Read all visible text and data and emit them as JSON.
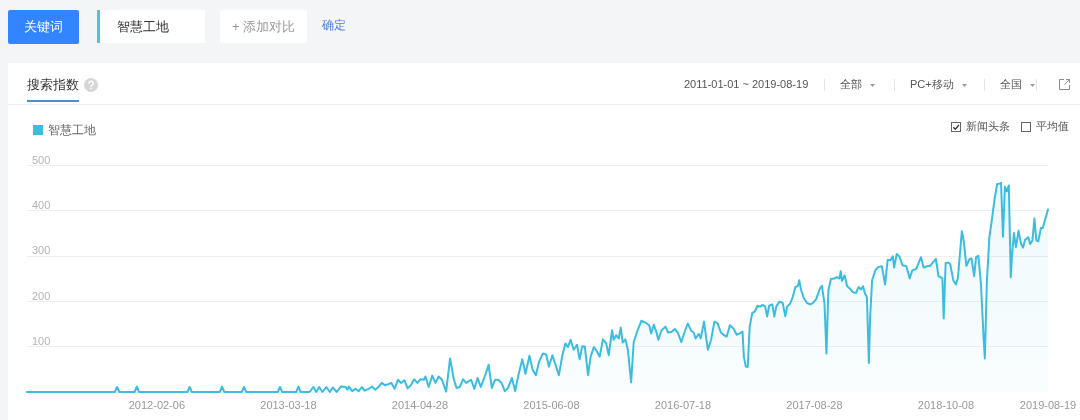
{
  "chart_data": {
    "type": "area",
    "title": "搜索指数",
    "subtitle": "2011-01-01 ~ 2019-08-19",
    "annotations": [
      "关键词",
      "智慧工地",
      "+ 添加对比",
      "确定",
      "全部",
      "PC+移动",
      "全国",
      "新闻头条",
      "平均值"
    ],
    "x": [
      "2011-01-01",
      "2011-09-29",
      "2011-10-06",
      "2011-10-13",
      "2011-11-29",
      "2011-12-06",
      "2011-12-13",
      "2012-05-10",
      "2012-05-17",
      "2012-05-24",
      "2012-08-18",
      "2012-08-25",
      "2012-09-01",
      "2012-10-25",
      "2012-11-01",
      "2012-11-08",
      "2013-02-13",
      "2013-02-20",
      "2013-02-27",
      "2013-04-11",
      "2013-04-18",
      "2013-04-25",
      "2013-05-22",
      "2013-06-03",
      "2013-06-12",
      "2013-06-21",
      "2013-07-01",
      "2013-07-13",
      "2013-07-24",
      "2013-08-02",
      "2013-08-14",
      "2013-08-27",
      "2013-09-11",
      "2013-09-16",
      "2013-09-21",
      "2013-10-01",
      "2013-10-11",
      "2013-10-21",
      "2013-10-31",
      "2013-11-08",
      "2013-11-21",
      "2013-12-01",
      "2013-12-11",
      "2013-12-21",
      "2013-12-31",
      "2014-01-10",
      "2014-01-20",
      "2014-01-30",
      "2014-02-09",
      "2014-02-19",
      "2014-03-01",
      "2014-03-11",
      "2014-03-21",
      "2014-03-31",
      "2014-04-10",
      "2014-04-20",
      "2014-04-30",
      "2014-05-10",
      "2014-05-15",
      "2014-05-25",
      "2014-06-05",
      "2014-06-15",
      "2014-06-25",
      "2014-07-05",
      "2014-07-18",
      "2014-07-30",
      "2014-08-11",
      "2014-08-19",
      "2014-08-29",
      "2014-09-08",
      "2014-09-18",
      "2014-10-03",
      "2014-10-13",
      "2014-10-23",
      "2014-11-02",
      "2014-11-17",
      "2014-11-26",
      "2014-12-06",
      "2014-12-16",
      "2014-12-26",
      "2015-01-05",
      "2015-01-15",
      "2015-01-25",
      "2015-02-06",
      "2015-02-16",
      "2015-02-26",
      "2015-03-10",
      "2015-03-20",
      "2015-04-01",
      "2015-04-11",
      "2015-04-21",
      "2015-05-01",
      "2015-05-13",
      "2015-05-23",
      "2015-05-31",
      "2015-06-11",
      "2015-06-21",
      "2015-07-01",
      "2015-07-11",
      "2015-07-21",
      "2015-07-29",
      "2015-08-06",
      "2015-08-16",
      "2015-08-26",
      "2015-09-03",
      "2015-09-11",
      "2015-09-19",
      "2015-09-29",
      "2015-10-07",
      "2015-10-17",
      "2015-10-25",
      "2015-11-04",
      "2015-11-14",
      "2015-11-24",
      "2015-12-02",
      "2015-12-12",
      "2015-12-17",
      "2015-12-25",
      "2016-01-02",
      "2016-01-08",
      "2016-01-14",
      "2016-01-22",
      "2016-01-30",
      "2016-02-09",
      "2016-02-17",
      "2016-02-29",
      "2016-03-12",
      "2016-03-24",
      "2016-04-05",
      "2016-04-11",
      "2016-04-19",
      "2016-04-27",
      "2016-05-03",
      "2016-05-13",
      "2016-05-25",
      "2016-06-02",
      "2016-06-12",
      "2016-06-23",
      "2016-07-03",
      "2016-07-13",
      "2016-07-25",
      "2016-08-02",
      "2016-08-12",
      "2016-08-20",
      "2016-08-26",
      "2016-09-05",
      "2016-09-11",
      "2016-09-21",
      "2016-10-03",
      "2016-10-13",
      "2016-10-23",
      "2016-11-02",
      "2016-11-12",
      "2016-11-22",
      "2016-11-30",
      "2016-12-10",
      "2016-12-21",
      "2016-12-31",
      "2017-01-10",
      "2017-01-18",
      "2017-01-22",
      "2017-01-28",
      "2017-02-03",
      "2017-02-09",
      "2017-02-17",
      "2017-02-25",
      "2017-03-05",
      "2017-03-13",
      "2017-03-21",
      "2017-03-29",
      "2017-04-04",
      "2017-04-10",
      "2017-04-20",
      "2017-04-26",
      "2017-05-02",
      "2017-05-12",
      "2017-05-22",
      "2017-05-30",
      "2017-06-05",
      "2017-06-14",
      "2017-06-22",
      "2017-06-30",
      "2017-07-08",
      "2017-07-12",
      "2017-07-18",
      "2017-07-26",
      "2017-08-05",
      "2017-08-15",
      "2017-08-23",
      "2017-09-02",
      "2017-09-14",
      "2017-09-20",
      "2017-09-28",
      "2017-10-04",
      "2017-10-10",
      "2017-10-18",
      "2017-10-28",
      "2017-11-05",
      "2017-11-13",
      "2017-11-17",
      "2017-11-21",
      "2017-11-29",
      "2017-12-07",
      "2017-12-15",
      "2017-12-24",
      "2018-01-03",
      "2018-01-11",
      "2018-01-19",
      "2018-01-25",
      "2018-01-31",
      "2018-02-06",
      "2018-02-12",
      "2018-02-16",
      "2018-02-22",
      "2018-03-04",
      "2018-03-12",
      "2018-03-24",
      "2018-04-03",
      "2018-04-11",
      "2018-04-19",
      "2018-04-27",
      "2018-05-01",
      "2018-05-09",
      "2018-05-17",
      "2018-05-27",
      "2018-06-08",
      "2018-06-18",
      "2018-06-26",
      "2018-07-08",
      "2018-07-23",
      "2018-07-31",
      "2018-08-10",
      "2018-08-20",
      "2018-08-28",
      "2018-09-07",
      "2018-09-15",
      "2018-09-21",
      "2018-09-27",
      "2018-10-01",
      "2018-10-07",
      "2018-10-15",
      "2018-10-21",
      "2018-10-31",
      "2018-11-08",
      "2018-11-14",
      "2018-11-26",
      "2018-12-02",
      "2018-12-10",
      "2018-12-20",
      "2018-12-26",
      "2019-01-03",
      "2019-01-09",
      "2019-01-16",
      "2019-01-24",
      "2019-02-01",
      "2019-02-05",
      "2019-02-11",
      "2019-02-19",
      "2019-02-25",
      "2019-03-07",
      "2019-03-15",
      "2019-03-23",
      "2019-03-27",
      "2019-04-02",
      "2019-04-08",
      "2019-04-14",
      "2019-04-20",
      "2019-04-26",
      "2019-04-30",
      "2019-05-06",
      "2019-05-12",
      "2019-05-20",
      "2019-05-28",
      "2019-06-03",
      "2019-06-09",
      "2019-06-19",
      "2019-06-25",
      "2019-07-02",
      "2019-07-08",
      "2019-07-14",
      "2019-07-20",
      "2019-07-28",
      "2019-08-03",
      "2019-08-09",
      "2019-08-19"
    ],
    "series": [
      {
        "name": "智慧工地",
        "color": "#3cbde0",
        "values": [
          0,
          0,
          11,
          0,
          0,
          12,
          0,
          0,
          11,
          0,
          0,
          12,
          0,
          0,
          11,
          0,
          0,
          11,
          0,
          0,
          12,
          0,
          0,
          11,
          0,
          11,
          0,
          11,
          0,
          10,
          0,
          12,
          11,
          5,
          12,
          2,
          7,
          2,
          11,
          3,
          7,
          12,
          5,
          11,
          20,
          15,
          17,
          20,
          7,
          27,
          20,
          26,
          8,
          15,
          28,
          20,
          28,
          27,
          34,
          11,
          36,
          20,
          34,
          27,
          1,
          74,
          27,
          9,
          11,
          28,
          20,
          27,
          7,
          31,
          11,
          40,
          60,
          9,
          27,
          27,
          20,
          2,
          9,
          31,
          2,
          37,
          72,
          40,
          80,
          49,
          37,
          67,
          85,
          82,
          56,
          81,
          59,
          37,
          78,
          107,
          99,
          115,
          93,
          104,
          72,
          101,
          100,
          37,
          78,
          99,
          91,
          78,
          116,
          107,
          81,
          136,
          115,
          125,
          118,
          142,
          109,
          116,
          93,
          21,
          110,
          136,
          157,
          153,
          147,
          129,
          148,
          132,
          115,
          136,
          144,
          131,
          132,
          139,
          129,
          110,
          136,
          151,
          135,
          131,
          118,
          128,
          118,
          155,
          93,
          115,
          155,
          151,
          131,
          125,
          122,
          147,
          140,
          126,
          129,
          133,
          78,
          56,
          55,
          144,
          174,
          177,
          190,
          188,
          192,
          188,
          166,
          190,
          193,
          166,
          188,
          199,
          196,
          167,
          188,
          195,
          209,
          231,
          234,
          246,
          224,
          207,
          196,
          193,
          196,
          204,
          228,
          234,
          195,
          85,
          224,
          249,
          250,
          253,
          250,
          266,
          245,
          257,
          233,
          228,
          220,
          218,
          231,
          226,
          233,
          217,
          209,
          64,
          166,
          246,
          268,
          275,
          277,
          237,
          291,
          290,
          299,
          274,
          304,
          299,
          279,
          277,
          250,
          268,
          271,
          297,
          274,
          277,
          278,
          285,
          293,
          255,
          253,
          250,
          162,
          284,
          285,
          282,
          245,
          237,
          252,
          354,
          332,
          278,
          293,
          294,
          255,
          297,
          300,
          239,
          122,
          74,
          239,
          341,
          370,
          425,
          458,
          459,
          461,
          342,
          452,
          442,
          455,
          253,
          303,
          350,
          319,
          355,
          326,
          318,
          335,
          341,
          326,
          334,
          382,
          334,
          332,
          361,
          361,
          377,
          402
        ]
      }
    ],
    "xlim": [
      "2011-01-01",
      "2019-08-19"
    ],
    "xticks": [
      "2012-02-06",
      "2013-03-18",
      "2014-04-28",
      "2015-06-08",
      "2016-07-18",
      "2017-08-28",
      "2018-10-08",
      "2019-08-19"
    ],
    "ylim": [
      0,
      500
    ],
    "yticks": [
      100,
      200,
      300,
      400,
      500
    ],
    "grid": "y",
    "legend": "top left"
  }
}
